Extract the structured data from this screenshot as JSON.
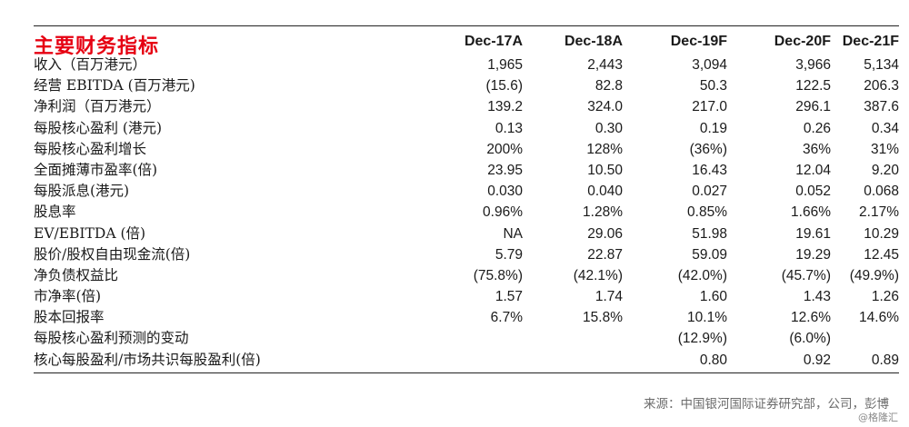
{
  "title": "主要财务指标",
  "columns": [
    "Dec-17A",
    "Dec-18A",
    "Dec-19F",
    "Dec-20F",
    "Dec-21F"
  ],
  "rows": [
    {
      "label": "收入（百万港元）",
      "values": [
        "1,965",
        "2,443",
        "3,094",
        "3,966",
        "5,134"
      ]
    },
    {
      "label": "经营 EBITDA (百万港元)",
      "values": [
        "(15.6)",
        "82.8",
        "50.3",
        "122.5",
        "206.3"
      ]
    },
    {
      "label": "净利润（百万港元）",
      "values": [
        "139.2",
        "324.0",
        "217.0",
        "296.1",
        "387.6"
      ]
    },
    {
      "label": "每股核心盈利 (港元)",
      "values": [
        "0.13",
        "0.30",
        "0.19",
        "0.26",
        "0.34"
      ]
    },
    {
      "label": "每股核心盈利增长",
      "values": [
        "200%",
        "128%",
        "(36%)",
        "36%",
        "31%"
      ]
    },
    {
      "label": "全面摊薄市盈率(倍)",
      "values": [
        "23.95",
        "10.50",
        "16.43",
        "12.04",
        "9.20"
      ]
    },
    {
      "label": "每股派息(港元)",
      "values": [
        "0.030",
        "0.040",
        "0.027",
        "0.052",
        "0.068"
      ]
    },
    {
      "label": "股息率",
      "values": [
        "0.96%",
        "1.28%",
        "0.85%",
        "1.66%",
        "2.17%"
      ]
    },
    {
      "label": "EV/EBITDA (倍)",
      "values": [
        "NA",
        "29.06",
        "51.98",
        "19.61",
        "10.29"
      ]
    },
    {
      "label": "股价/股权自由现金流(倍)",
      "values": [
        "5.79",
        "22.87",
        "59.09",
        "19.29",
        "12.45"
      ]
    },
    {
      "label": "净负债权益比",
      "values": [
        "(75.8%)",
        "(42.1%)",
        "(42.0%)",
        "(45.7%)",
        "(49.9%)"
      ]
    },
    {
      "label": "市净率(倍)",
      "values": [
        "1.57",
        "1.74",
        "1.60",
        "1.43",
        "1.26"
      ]
    },
    {
      "label": "股本回报率",
      "values": [
        "6.7%",
        "15.8%",
        "10.1%",
        "12.6%",
        "14.6%"
      ]
    },
    {
      "label": "每股核心盈利预测的变动",
      "values": [
        "",
        "",
        "(12.9%)",
        "(6.0%)",
        ""
      ]
    },
    {
      "label": "核心每股盈利/市场共识每股盈利(倍)",
      "values": [
        "",
        "",
        "0.80",
        "0.92",
        "0.89"
      ]
    }
  ],
  "source": "来源：中国银河国际证券研究部，公司，彭博",
  "watermark": "@格隆汇"
}
